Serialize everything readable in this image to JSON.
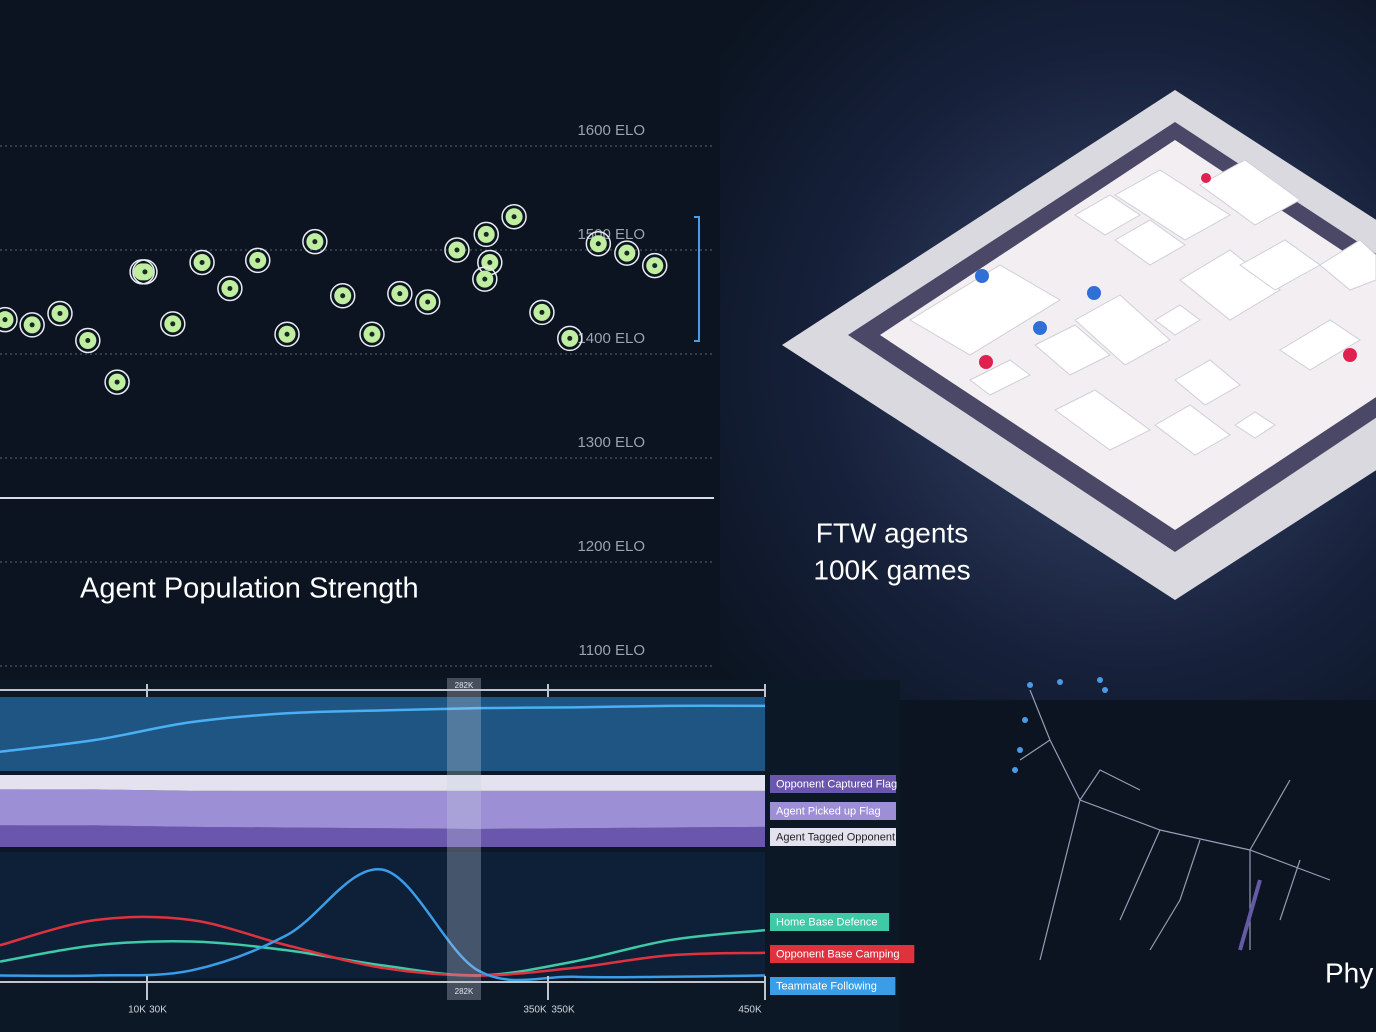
{
  "chart_data": [
    {
      "type": "scatter",
      "title": "Agent Population Strength",
      "x": [
        0.7,
        4.5,
        8.4,
        12.3,
        16.4,
        19.9,
        20.3,
        24.2,
        28.3,
        32.2,
        36.1,
        40.2,
        44.1,
        48.0,
        52.1,
        56.0,
        59.9,
        64.0,
        68.1,
        68.6,
        67.9,
        72.0,
        75.9,
        79.8,
        83.8,
        87.8,
        91.7
      ],
      "values": [
        1433,
        1428,
        1439,
        1413,
        1373,
        1479,
        1479,
        1429,
        1488,
        1463,
        1490,
        1419,
        1508,
        1456,
        1419,
        1458,
        1450,
        1500,
        1515,
        1488,
        1472,
        1532,
        1440,
        1415,
        1506,
        1497,
        1485
      ],
      "color": "#bfeea0",
      "xlim": [
        0,
        100
      ],
      "ylim": [
        1100,
        1700
      ],
      "yticks": [
        {
          "value": 1100,
          "label": "1100 ELO"
        },
        {
          "value": 1200,
          "label": "1200 ELO"
        },
        {
          "value": 1300,
          "label": "1300 ELO"
        },
        {
          "value": 1400,
          "label": "1400 ELO"
        },
        {
          "value": 1500,
          "label": "1500 ELO"
        },
        {
          "value": 1600,
          "label": "1600 ELO"
        }
      ],
      "grid": true
    },
    {
      "type": "line",
      "categories": [
        null,
        null,
        null,
        null,
        null,
        null,
        null,
        null,
        null
      ],
      "series": [
        {
          "panel": "top",
          "color": "#4ab0f5",
          "values": [
            26,
            42,
            66,
            78,
            82,
            85,
            86,
            88,
            88
          ]
        },
        {
          "panel": "middle",
          "name": "Agent Tagged Opponent",
          "color": "#e4e2ef",
          "values": [
            20,
            20,
            22,
            22,
            22,
            22,
            22,
            22,
            22
          ]
        },
        {
          "panel": "middle",
          "name": "Agent Picked up Flag",
          "color": "#9d8fd6",
          "values": [
            50,
            50,
            50,
            51,
            52,
            53,
            52,
            51,
            50
          ]
        },
        {
          "panel": "middle",
          "name": "Opponent Captured Flag",
          "color": "#6b56ad",
          "values": [
            30,
            30,
            28,
            27,
            26,
            25,
            26,
            27,
            28
          ]
        },
        {
          "panel": "bottom",
          "name": "Home Base Defence",
          "color": "#3ec9a7",
          "values": [
            13,
            26,
            29,
            22,
            10,
            2,
            13,
            30,
            38
          ]
        },
        {
          "panel": "bottom",
          "name": "Opponent Base Camping",
          "color": "#e0313f",
          "values": [
            26,
            46,
            46,
            26,
            8,
            2,
            8,
            18,
            20
          ]
        },
        {
          "panel": "bottom",
          "name": "Teammate Following",
          "color": "#3a9de8",
          "values": [
            2,
            2,
            6,
            34,
            86,
            6,
            1,
            1,
            2
          ]
        }
      ],
      "ylim": [
        0,
        100
      ],
      "tick_labels": [
        "10K",
        "30K",
        "350K",
        "350K",
        "450K"
      ],
      "marker_labels": [
        "282K",
        "282K"
      ]
    }
  ],
  "maze_caption": [
    "FTW agents",
    "100K games"
  ],
  "corner_text": "Phy"
}
